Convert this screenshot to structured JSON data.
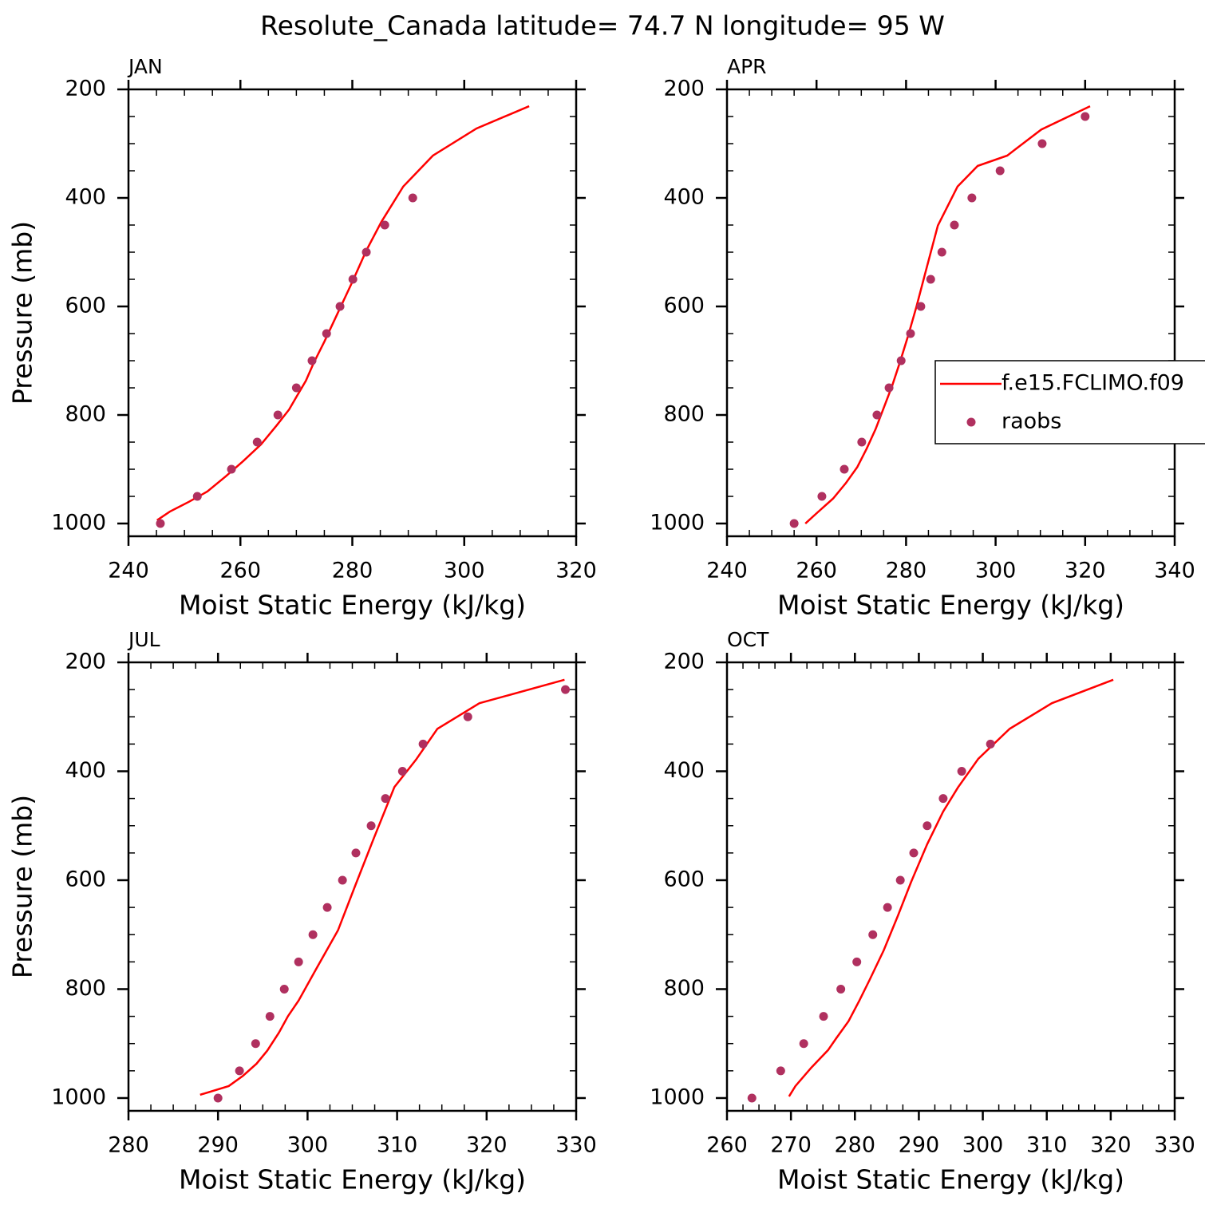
{
  "title": "Resolute_Canada  latitude= 74.7 N longitude= 95 W",
  "chart_data": [
    {
      "type": "line",
      "title": "JAN",
      "xlabel": "Moist Static Energy (kJ/kg)",
      "ylabel": "Pressure (mb)",
      "xlim": [
        240,
        320
      ],
      "xticks": [
        240,
        260,
        280,
        300,
        320
      ],
      "ylim": [
        1023.5,
        200
      ],
      "yticks": [
        200,
        400,
        600,
        800,
        1000
      ],
      "series": [
        {
          "color": "#ff0000",
          "style": "line",
          "x": [
            245.1,
            247.4,
            250.8,
            254.1,
            257.4,
            260.5,
            263.7,
            266.5,
            268.7,
            270.1,
            271.7,
            273.1,
            275.0,
            277.4,
            279.9,
            282.5,
            285.2,
            289.1,
            294.4,
            302.2,
            311.6
          ],
          "values": [
            994,
            978,
            960,
            941,
            913,
            885,
            854,
            819,
            790,
            765,
            737,
            704,
            665,
            612,
            557,
            497,
            444,
            379,
            322,
            272,
            231
          ]
        },
        {
          "color": "#b0305f",
          "style": "markers",
          "x": [
            245.7,
            252.3,
            258.4,
            263.0,
            266.7,
            270.0,
            272.8,
            275.4,
            277.8,
            280.1,
            282.5,
            285.8,
            290.8
          ],
          "values": [
            1000,
            950,
            900,
            850,
            800,
            750,
            700,
            650,
            600,
            550,
            500,
            450,
            400
          ]
        }
      ]
    },
    {
      "type": "line",
      "title": "APR",
      "xlabel": "Moist Static Energy (kJ/kg)",
      "xlim": [
        240,
        340
      ],
      "xticks": [
        240,
        260,
        280,
        300,
        320,
        340
      ],
      "ylim": [
        1023.5,
        200
      ],
      "yticks": [
        200,
        400,
        600,
        800,
        1000
      ],
      "legend": "right",
      "series": [
        {
          "name": "f.e15.FCLIMO.f09",
          "color": "#ff0000",
          "style": "line",
          "x": [
            257.5,
            260.3,
            263.7,
            266.6,
            269.1,
            271.2,
            273.2,
            275.1,
            276.9,
            278.7,
            280.5,
            282.3,
            284.4,
            287.1,
            291.5,
            296.0,
            302.6,
            310.2,
            321.1
          ],
          "values": [
            1000,
            979,
            954,
            925,
            896,
            862,
            826,
            785,
            746,
            701,
            653,
            601,
            535,
            451,
            379,
            341,
            322,
            274,
            231
          ]
        },
        {
          "name": "raobs",
          "color": "#b0305f",
          "style": "markers",
          "x": [
            255.0,
            261.2,
            266.2,
            270.1,
            273.5,
            276.2,
            278.9,
            281.0,
            283.3,
            285.5,
            288.0,
            290.8,
            294.7,
            301.0,
            310.4,
            320.0
          ],
          "values": [
            1000,
            950,
            900,
            850,
            800,
            750,
            700,
            650,
            600,
            550,
            500,
            450,
            400,
            350,
            300,
            250
          ]
        }
      ]
    },
    {
      "type": "line",
      "title": "JUL",
      "xlabel": "Moist Static Energy (kJ/kg)",
      "ylabel": "Pressure (mb)",
      "xlim": [
        280,
        330
      ],
      "xticks": [
        280,
        290,
        300,
        310,
        320,
        330
      ],
      "ylim": [
        1023.5,
        200
      ],
      "yticks": [
        200,
        400,
        600,
        800,
        1000
      ],
      "series": [
        {
          "color": "#ff0000",
          "style": "line",
          "x": [
            288.0,
            291.2,
            292.8,
            294.3,
            295.5,
            296.8,
            297.8,
            299.0,
            301.0,
            303.4,
            305.3,
            307.4,
            309.7,
            312.1,
            314.5,
            319.2,
            328.7
          ],
          "values": [
            994,
            978,
            959,
            937,
            913,
            880,
            850,
            821,
            762,
            692,
            611,
            523,
            429,
            379,
            322,
            275,
            232
          ]
        },
        {
          "color": "#b0305f",
          "style": "markers",
          "x": [
            290.0,
            292.4,
            294.2,
            295.8,
            297.4,
            299.0,
            300.6,
            302.2,
            303.9,
            305.4,
            307.1,
            308.7,
            310.6,
            312.9,
            317.9,
            328.8
          ],
          "values": [
            1000,
            950,
            900,
            850,
            800,
            750,
            700,
            650,
            600,
            550,
            500,
            450,
            400,
            350,
            300,
            250
          ]
        }
      ]
    },
    {
      "type": "line",
      "title": "OCT",
      "xlabel": "Moist Static Energy (kJ/kg)",
      "xlim": [
        260,
        330
      ],
      "xticks": [
        260,
        270,
        280,
        290,
        300,
        310,
        320,
        330
      ],
      "ylim": [
        1023.5,
        200
      ],
      "yticks": [
        200,
        400,
        600,
        800,
        1000
      ],
      "series": [
        {
          "color": "#ff0000",
          "style": "line",
          "x": [
            269.7,
            270.7,
            273.2,
            275.8,
            277.1,
            279.0,
            280.7,
            282.3,
            284.5,
            286.7,
            288.8,
            291.3,
            293.8,
            296.1,
            299.3,
            304.2,
            310.8,
            320.4
          ],
          "values": [
            997,
            978,
            944,
            912,
            890,
            859,
            821,
            783,
            729,
            666,
            603,
            534,
            474,
            430,
            377,
            322,
            275,
            232
          ]
        },
        {
          "color": "#b0305f",
          "style": "markers",
          "x": [
            263.9,
            268.4,
            272.0,
            275.1,
            277.8,
            280.3,
            282.8,
            285.1,
            287.1,
            289.2,
            291.3,
            293.8,
            296.7,
            301.2
          ],
          "values": [
            1000,
            950,
            900,
            850,
            800,
            750,
            700,
            650,
            600,
            550,
            500,
            450,
            400,
            350
          ]
        }
      ]
    }
  ]
}
